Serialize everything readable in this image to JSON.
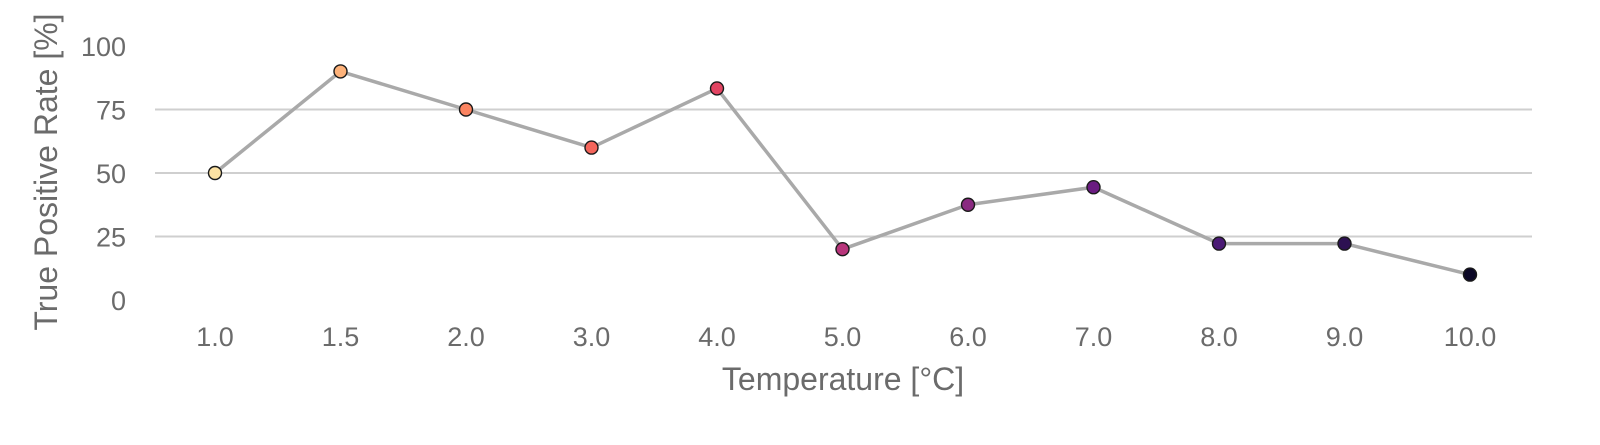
{
  "chart_data": {
    "type": "line",
    "title": "",
    "xlabel": "Temperature [°C]",
    "ylabel": "True Positive Rate [%]",
    "categories": [
      "1.0",
      "1.5",
      "2.0",
      "3.0",
      "4.0",
      "5.0",
      "6.0",
      "7.0",
      "8.0",
      "9.0",
      "10.0"
    ],
    "values": [
      50,
      90,
      75,
      60,
      83.3,
      20,
      37.5,
      44.4,
      22.2,
      22.2,
      10
    ],
    "point_colors": [
      "#fde3a4",
      "#fdb27a",
      "#fb8461",
      "#f4655b",
      "#e24462",
      "#b8357b",
      "#8a2a81",
      "#6a1c81",
      "#4b1a75",
      "#2d1152",
      "#0b0726"
    ],
    "line_color": "#a9a9a9",
    "yticks": [
      "0",
      "25",
      "50",
      "75",
      "100"
    ],
    "ylim": [
      0,
      100
    ],
    "grid": "horizontal"
  }
}
